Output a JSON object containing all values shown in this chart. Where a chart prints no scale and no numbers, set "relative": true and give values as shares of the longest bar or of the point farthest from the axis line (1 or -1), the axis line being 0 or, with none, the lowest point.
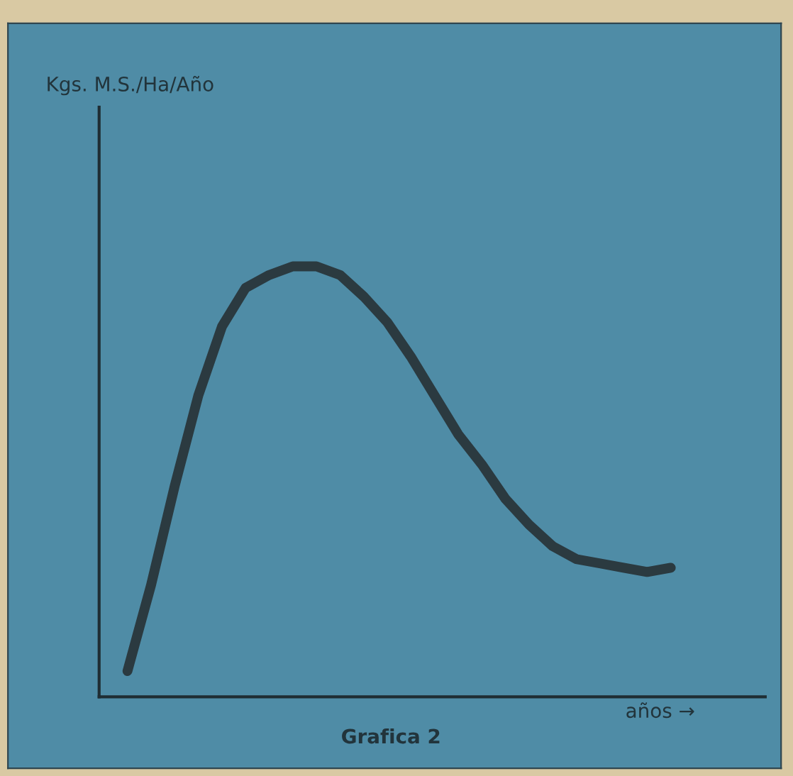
{
  "chart_data": {
    "type": "line",
    "relative": true,
    "title": "Grafica 2",
    "annotations": [
      "Kgs. M.S./Ha/Año"
    ],
    "xlabel": "años →",
    "categories": [
      null,
      null,
      null,
      null,
      null,
      null,
      null,
      null,
      null,
      null,
      null,
      null,
      null,
      null,
      null,
      null,
      null,
      null,
      null,
      null,
      null,
      null,
      null,
      null
    ],
    "series": [
      {
        "color": "#2b3a40",
        "values": [
          0.06,
          0.26,
          0.49,
          0.7,
          0.86,
          0.95,
          0.98,
          1.0,
          1.0,
          0.98,
          0.93,
          0.87,
          0.79,
          0.7,
          0.61,
          0.54,
          0.46,
          0.4,
          0.35,
          0.32,
          0.31,
          0.3,
          0.29,
          0.3
        ]
      }
    ],
    "legend": false,
    "tick_labels": false
  }
}
